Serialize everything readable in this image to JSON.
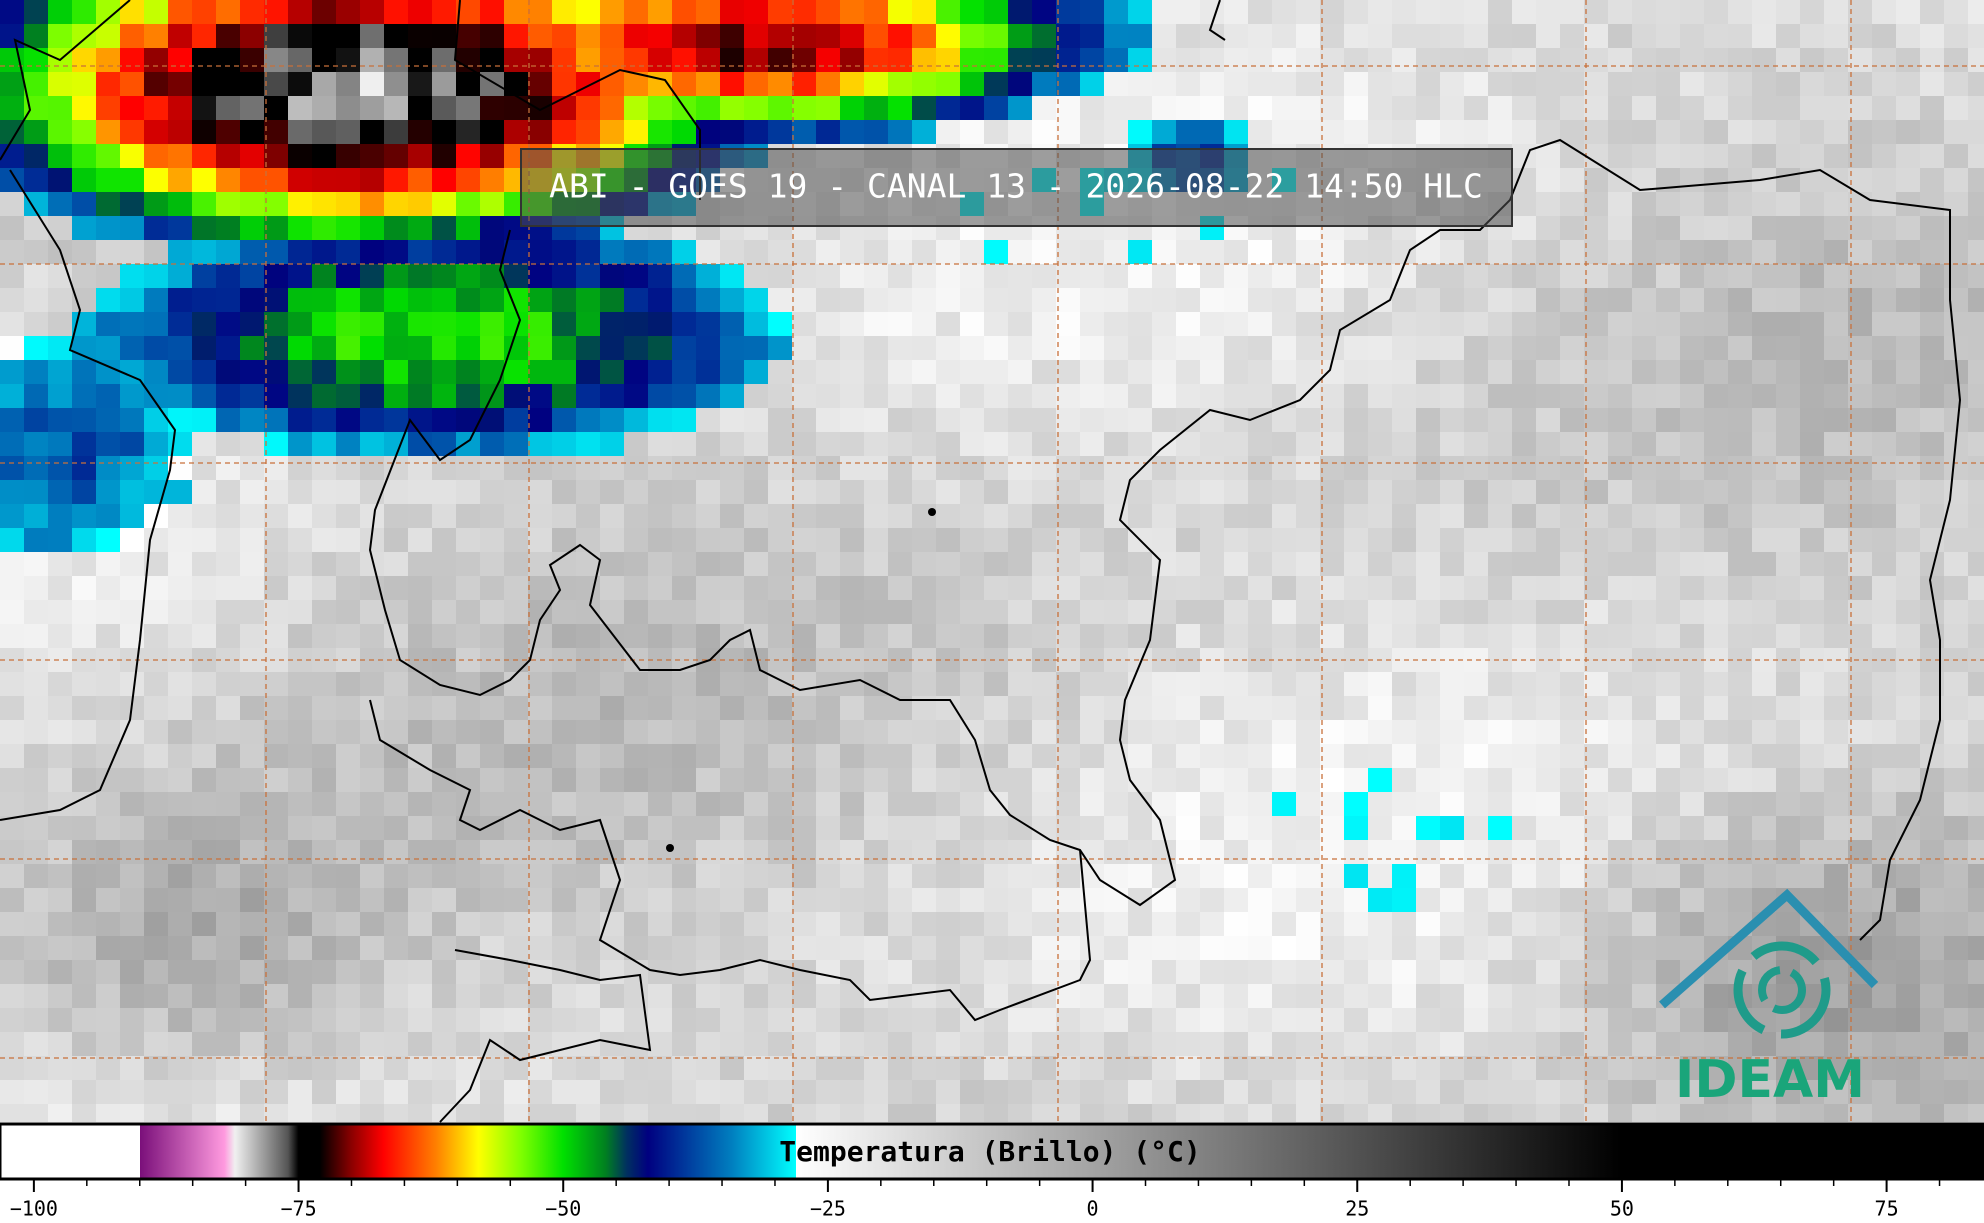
{
  "title": "ABI - GOES 19 - CANAL 13 - 2026-08-22 14:50 HLC",
  "logo": "IDEAM",
  "colorbar": {
    "label": "Temperatura (Brillo) (°C)",
    "xlim": [
      -103.2,
      84.2
    ],
    "xticks": [
      {
        "value": -100,
        "label": "−100"
      },
      {
        "value": -75,
        "label": "−75"
      },
      {
        "value": -50,
        "label": "−50"
      },
      {
        "value": -25,
        "label": "−25"
      },
      0,
      25,
      50,
      75
    ],
    "minor_xticks": [
      -95,
      -90,
      -85,
      -80,
      -70,
      -65,
      -60,
      -55,
      -45,
      -40,
      -35,
      -30,
      -20,
      -15,
      -10,
      -5,
      5,
      10,
      15,
      20,
      30,
      35,
      40,
      45,
      55,
      60,
      65,
      70,
      80
    ],
    "colormap": [
      {
        "value": -103.2,
        "color": "#ffffff"
      },
      {
        "value": -90,
        "color": "#ffffff"
      },
      {
        "value": -90,
        "color": "#7a0f7a"
      },
      {
        "value": -82,
        "color": "#ff9adf"
      },
      {
        "value": -81,
        "color": "#f0f0f0"
      },
      {
        "value": -76,
        "color": "#555555"
      },
      {
        "value": -75,
        "color": "#000000"
      },
      {
        "value": -73,
        "color": "#000000"
      },
      {
        "value": -70,
        "color": "#8b0000"
      },
      {
        "value": -67,
        "color": "#ff0000"
      },
      {
        "value": -62,
        "color": "#ff8000"
      },
      {
        "value": -58,
        "color": "#ffff00"
      },
      {
        "value": -54,
        "color": "#80ff00"
      },
      {
        "value": -50,
        "color": "#00e000"
      },
      {
        "value": -46,
        "color": "#008020"
      },
      {
        "value": -44,
        "color": "#003060"
      },
      {
        "value": -42,
        "color": "#000080"
      },
      {
        "value": -38,
        "color": "#0040a0"
      },
      {
        "value": -34,
        "color": "#0080c0"
      },
      {
        "value": -28,
        "color": "#00ffff"
      },
      {
        "value": -28,
        "color": "#ffffff"
      },
      {
        "value": 50,
        "color": "#000000"
      },
      {
        "value": 84.2,
        "color": "#000000"
      }
    ]
  }
}
